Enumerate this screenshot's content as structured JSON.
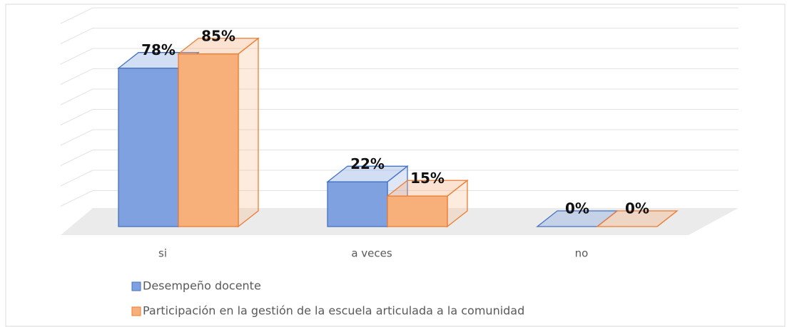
{
  "chart_data": {
    "type": "bar3d",
    "categories": [
      "si",
      "a veces",
      "no"
    ],
    "series": [
      {
        "name": "Desempeño docente",
        "color": "#4472c4",
        "fill": "#7fa1e0",
        "values": [
          78,
          22,
          0
        ],
        "value_labels": [
          "78%",
          "22%",
          "0%"
        ]
      },
      {
        "name": "Participación en la gestión de la escuela articulada a la comunidad",
        "color": "#ed7d31",
        "fill": "#f7b07a",
        "values": [
          85,
          15,
          0
        ],
        "value_labels": [
          "85%",
          "15%",
          "0%"
        ]
      }
    ],
    "ylim": [
      0,
      100
    ],
    "yticks": [
      0,
      10,
      20,
      30,
      40,
      50,
      60,
      70,
      80,
      90,
      100
    ],
    "grid": true,
    "legend": "bottom"
  }
}
